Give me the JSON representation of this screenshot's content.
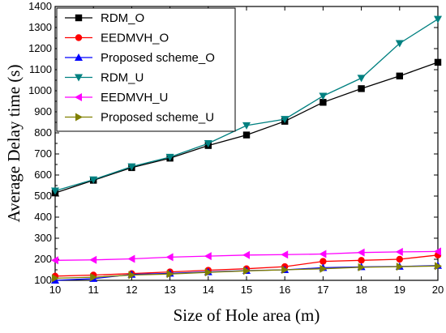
{
  "chart_data": {
    "type": "line",
    "title": "",
    "xlabel": "Size of Hole area (m)",
    "ylabel": "Average Delay time (s)",
    "x": [
      10,
      11,
      12,
      13,
      14,
      15,
      16,
      17,
      18,
      19,
      20
    ],
    "xlim": [
      10,
      20
    ],
    "ylim": [
      100,
      1400
    ],
    "xticks": [
      "10",
      "11",
      "12",
      "13",
      "14",
      "15",
      "16",
      "17",
      "18",
      "19",
      "20"
    ],
    "yticks": [
      "100",
      "200",
      "300",
      "400",
      "500",
      "600",
      "700",
      "800",
      "900",
      "1000",
      "1100",
      "1200",
      "1300",
      "1400"
    ],
    "grid": false,
    "legend_position": "top-left",
    "series": [
      {
        "name": "RDM_O",
        "color": "#000000",
        "marker": "square",
        "values": [
          515,
          575,
          635,
          680,
          740,
          790,
          855,
          945,
          1010,
          1070,
          1135
        ]
      },
      {
        "name": "EEDMVH_O",
        "color": "#ff0000",
        "marker": "circle",
        "values": [
          120,
          125,
          132,
          140,
          148,
          155,
          165,
          190,
          195,
          200,
          220
        ]
      },
      {
        "name": "Proposed scheme_O",
        "color": "#0000ff",
        "marker": "triangle-up",
        "values": [
          100,
          108,
          128,
          133,
          140,
          146,
          150,
          160,
          164,
          166,
          170
        ]
      },
      {
        "name": "RDM_U",
        "color": "#008080",
        "marker": "triangle-down",
        "values": [
          525,
          578,
          640,
          685,
          750,
          835,
          865,
          975,
          1060,
          1225,
          1340
        ]
      },
      {
        "name": "EEDMVH_U",
        "color": "#ff00ff",
        "marker": "triangle-left",
        "values": [
          195,
          197,
          202,
          210,
          215,
          220,
          222,
          225,
          232,
          235,
          237
        ]
      },
      {
        "name": "Proposed scheme_U",
        "color": "#808000",
        "marker": "triangle-right",
        "values": [
          110,
          115,
          125,
          130,
          138,
          145,
          150,
          155,
          162,
          165,
          168
        ]
      }
    ]
  }
}
